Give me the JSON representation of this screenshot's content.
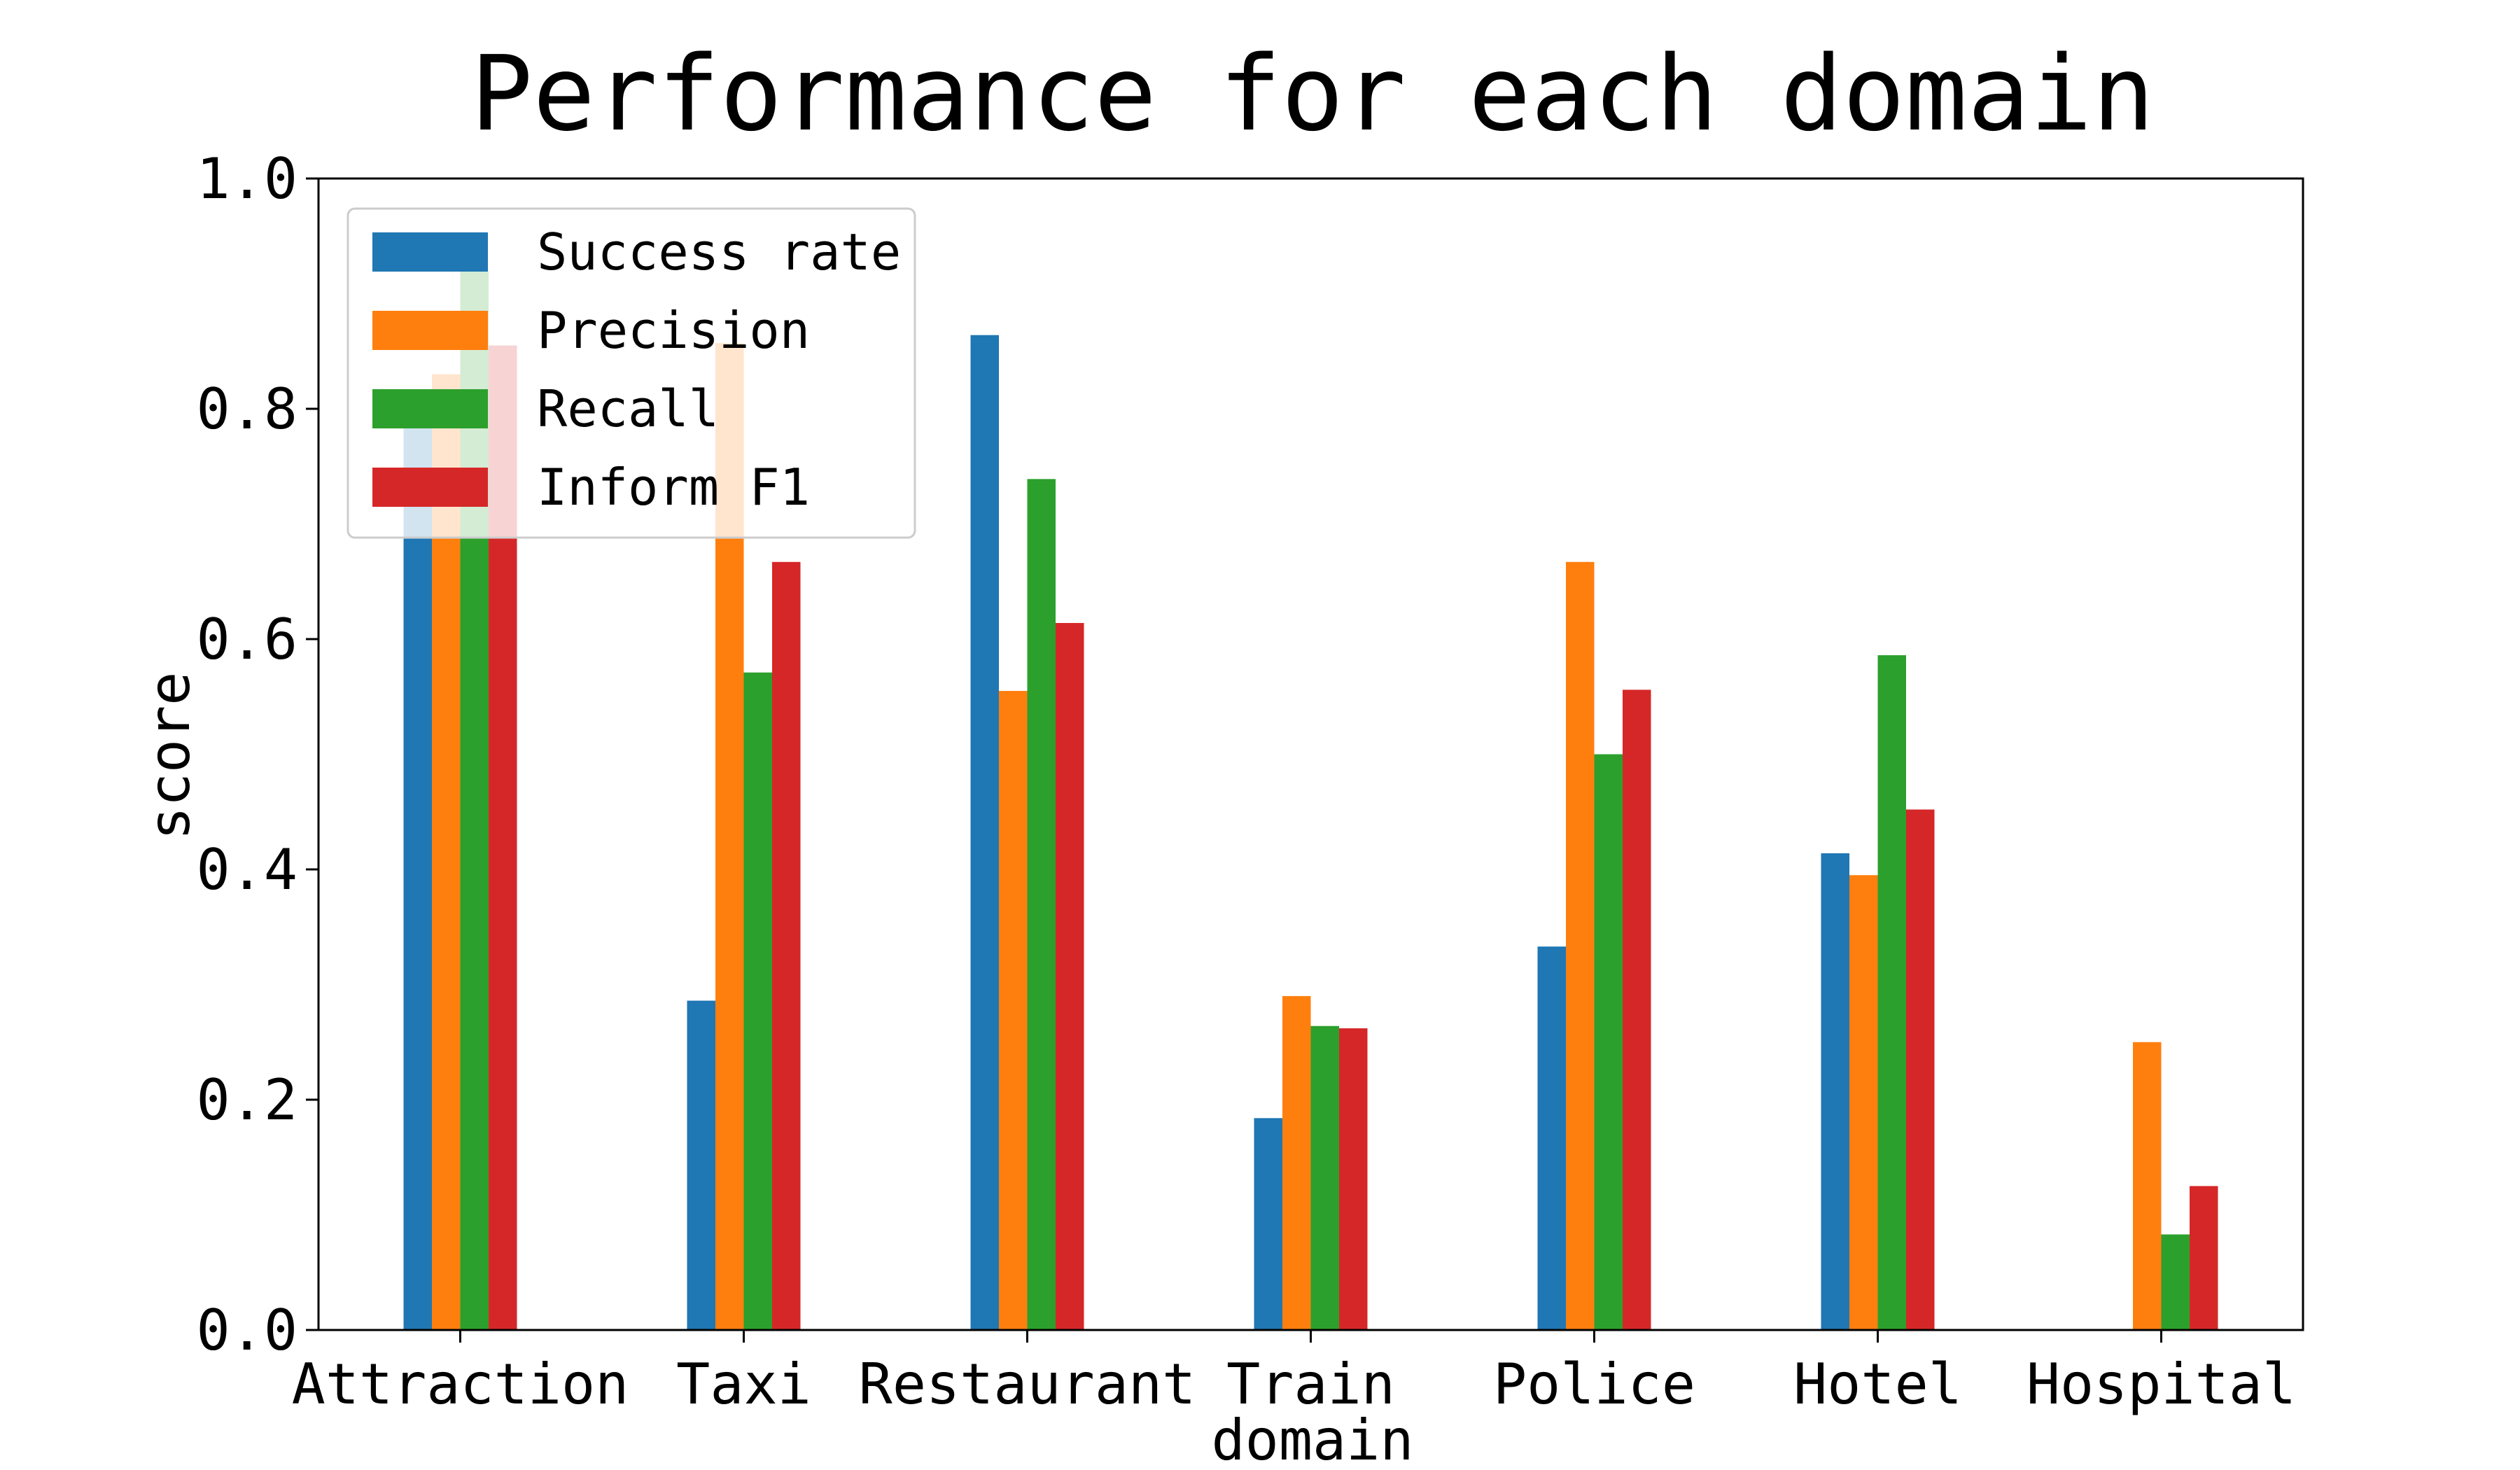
{
  "chart_data": {
    "type": "bar",
    "title": "Performance for each domain",
    "xlabel": "domain",
    "ylabel": "score",
    "ylim": [
      0,
      1.0
    ],
    "yticks": [
      "0.0",
      "0.2",
      "0.4",
      "0.6",
      "0.8",
      "1.0"
    ],
    "grid": false,
    "legend_position": "top-left",
    "categories": [
      "Attraction",
      "Taxi",
      "Restaurant",
      "Train",
      "Police",
      "Hotel",
      "Hospital"
    ],
    "series": [
      {
        "name": "Success rate",
        "color": "#1f77b4",
        "values": [
          0.8,
          0.286,
          0.864,
          0.184,
          0.333,
          0.414,
          0.0
        ]
      },
      {
        "name": "Precision",
        "color": "#ff7f0e",
        "values": [
          0.83,
          0.857,
          0.555,
          0.29,
          0.667,
          0.395,
          0.25
        ]
      },
      {
        "name": "Recall",
        "color": "#2ca02c",
        "values": [
          0.92,
          0.571,
          0.739,
          0.264,
          0.5,
          0.586,
          0.083
        ]
      },
      {
        "name": "Inform F1",
        "color": "#d62728",
        "values": [
          0.855,
          0.667,
          0.614,
          0.262,
          0.556,
          0.452,
          0.125
        ]
      }
    ]
  }
}
